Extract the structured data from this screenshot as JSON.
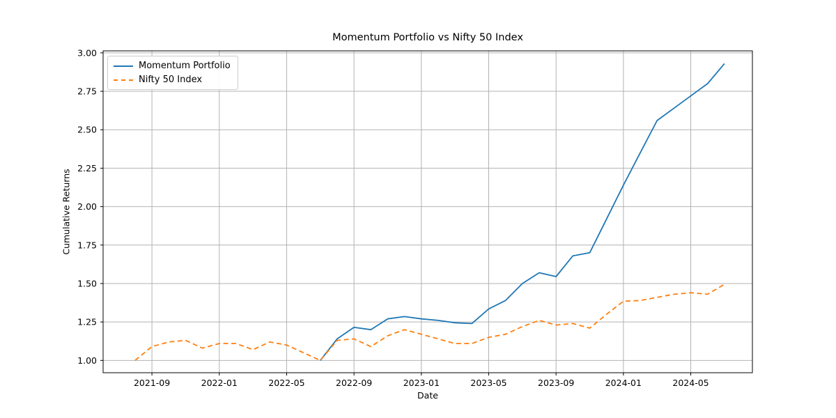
{
  "chart_data": {
    "type": "line",
    "title": "Momentum Portfolio vs Nifty 50 Index",
    "xlabel": "Date",
    "ylabel": "Cumulative Returns",
    "grid": true,
    "legend_position": "upper-left",
    "categories": [
      "2021-08",
      "2021-09",
      "2021-10",
      "2021-11",
      "2021-12",
      "2022-01",
      "2022-02",
      "2022-03",
      "2022-04",
      "2022-05",
      "2022-06",
      "2022-07",
      "2022-08",
      "2022-09",
      "2022-10",
      "2022-11",
      "2022-12",
      "2023-01",
      "2023-02",
      "2023-03",
      "2023-04",
      "2023-05",
      "2023-06",
      "2023-07",
      "2023-08",
      "2023-09",
      "2023-10",
      "2023-11",
      "2023-12",
      "2024-01",
      "2024-02",
      "2024-03",
      "2024-04",
      "2024-05",
      "2024-06",
      "2024-07"
    ],
    "series": [
      {
        "name": "Momentum Portfolio",
        "color": "#1f77b4",
        "style": "solid",
        "values": [
          null,
          null,
          null,
          null,
          null,
          null,
          null,
          null,
          null,
          null,
          null,
          1.0,
          1.14,
          1.215,
          1.2,
          1.27,
          1.285,
          1.27,
          1.26,
          1.245,
          1.24,
          1.335,
          1.39,
          1.5,
          1.57,
          1.545,
          1.68,
          1.7,
          1.92,
          2.14,
          2.35,
          2.56,
          2.64,
          2.72,
          2.8,
          2.93
        ]
      },
      {
        "name": "Nifty 50 Index",
        "color": "#ff7f0e",
        "style": "dashed",
        "values": [
          1.0,
          1.09,
          1.12,
          1.13,
          1.08,
          1.11,
          1.11,
          1.07,
          1.12,
          1.1,
          1.05,
          1.0,
          1.13,
          1.14,
          1.09,
          1.16,
          1.2,
          1.17,
          1.14,
          1.11,
          1.11,
          1.15,
          1.17,
          1.22,
          1.26,
          1.23,
          1.24,
          1.21,
          1.3,
          1.385,
          1.39,
          1.41,
          1.43,
          1.44,
          1.43,
          1.495
        ]
      }
    ],
    "xticks": [
      {
        "index": 1,
        "label": "2021-09"
      },
      {
        "index": 5,
        "label": "2022-01"
      },
      {
        "index": 9,
        "label": "2022-05"
      },
      {
        "index": 13,
        "label": "2022-09"
      },
      {
        "index": 17,
        "label": "2023-01"
      },
      {
        "index": 21,
        "label": "2023-05"
      },
      {
        "index": 25,
        "label": "2023-09"
      },
      {
        "index": 29,
        "label": "2024-01"
      },
      {
        "index": 33,
        "label": "2024-05"
      }
    ],
    "yticks": [
      {
        "value": 1.0,
        "label": "1.00"
      },
      {
        "value": 1.25,
        "label": "1.25"
      },
      {
        "value": 1.5,
        "label": "1.50"
      },
      {
        "value": 1.75,
        "label": "1.75"
      },
      {
        "value": 2.0,
        "label": "2.00"
      },
      {
        "value": 2.25,
        "label": "2.25"
      },
      {
        "value": 2.5,
        "label": "2.50"
      },
      {
        "value": 2.75,
        "label": "2.75"
      },
      {
        "value": 3.0,
        "label": "3.00"
      }
    ],
    "xlim": [
      -1.9,
      36.66
    ],
    "ylim": [
      0.92,
      3.013
    ],
    "colors": {
      "momentum": "#1f77b4",
      "nifty": "#ff7f0e",
      "grid": "#b2b2b2",
      "spine": "#000000",
      "tick_text": "#000000"
    }
  }
}
